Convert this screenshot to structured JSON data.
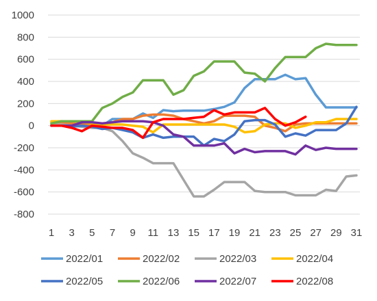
{
  "chart_data": {
    "type": "line",
    "ylim": [
      -800,
      1000
    ],
    "yticks": [
      -800,
      -600,
      -400,
      -200,
      0,
      200,
      400,
      600,
      800,
      1000
    ],
    "xticks": [
      1,
      3,
      5,
      7,
      9,
      11,
      13,
      15,
      17,
      19,
      21,
      23,
      25,
      27,
      29,
      31
    ],
    "grid": true,
    "legend_position": "bottom",
    "series": [
      {
        "name": "2022/01",
        "color": "#5B9BD5",
        "x": [
          1,
          2,
          3,
          4,
          5,
          6,
          7,
          8,
          9,
          10,
          11,
          12,
          13,
          14,
          15,
          16,
          17,
          18,
          19,
          20,
          21,
          22,
          23,
          24,
          25,
          26,
          27,
          28,
          29,
          30,
          31
        ],
        "values": [
          10,
          20,
          20,
          15,
          10,
          0,
          60,
          60,
          60,
          110,
          70,
          140,
          130,
          135,
          135,
          135,
          150,
          170,
          210,
          340,
          420,
          420,
          420,
          460,
          420,
          430,
          280,
          165,
          165,
          165,
          165
        ]
      },
      {
        "name": "2022/02",
        "color": "#ED7D31",
        "x": [
          1,
          2,
          3,
          4,
          5,
          6,
          7,
          8,
          9,
          10,
          11,
          12,
          13,
          14,
          15,
          16,
          17,
          18,
          19,
          20,
          21,
          22,
          23,
          24,
          25,
          26,
          27,
          28,
          29,
          30,
          31
        ],
        "values": [
          30,
          30,
          20,
          10,
          0,
          0,
          30,
          60,
          60,
          90,
          100,
          100,
          90,
          60,
          40,
          20,
          40,
          90,
          90,
          90,
          80,
          0,
          -20,
          -50,
          10,
          20,
          20,
          20,
          20,
          20,
          20
        ]
      },
      {
        "name": "2022/03",
        "color": "#A5A5A5",
        "x": [
          1,
          2,
          3,
          4,
          5,
          6,
          7,
          8,
          9,
          10,
          11,
          12,
          13,
          14,
          15,
          16,
          17,
          18,
          19,
          20,
          21,
          22,
          23,
          24,
          25,
          26,
          27,
          28,
          29,
          30,
          31
        ],
        "values": [
          10,
          10,
          0,
          -10,
          -20,
          -20,
          -50,
          -140,
          -250,
          -290,
          -340,
          -340,
          -340,
          -490,
          -640,
          -640,
          -580,
          -510,
          -510,
          -510,
          -590,
          -600,
          -600,
          -600,
          -630,
          -630,
          -630,
          -580,
          -590,
          -460,
          -450
        ]
      },
      {
        "name": "2022/04",
        "color": "#FFC000",
        "x": [
          1,
          2,
          3,
          4,
          5,
          6,
          7,
          8,
          9,
          10,
          11,
          12,
          13,
          14,
          15,
          16,
          17,
          18,
          19,
          20,
          21,
          22,
          23,
          24,
          25,
          26,
          27,
          28,
          29,
          30,
          31
        ],
        "values": [
          40,
          40,
          40,
          30,
          20,
          10,
          10,
          10,
          0,
          -10,
          -60,
          10,
          10,
          10,
          10,
          10,
          10,
          10,
          -10,
          -60,
          -50,
          10,
          20,
          20,
          -20,
          0,
          30,
          30,
          60,
          60,
          60
        ]
      },
      {
        "name": "2022/05",
        "color": "#4472C4",
        "x": [
          1,
          2,
          3,
          4,
          5,
          6,
          7,
          8,
          9,
          10,
          11,
          12,
          13,
          14,
          15,
          16,
          17,
          18,
          19,
          20,
          21,
          22,
          23,
          24,
          25,
          26,
          27,
          28,
          29,
          30,
          31
        ],
        "values": [
          0,
          0,
          -10,
          0,
          -10,
          -30,
          -20,
          -40,
          -60,
          -110,
          -80,
          -110,
          -100,
          -100,
          -100,
          -180,
          -120,
          -140,
          -80,
          40,
          50,
          50,
          10,
          -100,
          -70,
          -90,
          -40,
          -40,
          -40,
          20,
          170
        ]
      },
      {
        "name": "2022/06",
        "color": "#70AD47",
        "x": [
          1,
          2,
          3,
          4,
          5,
          6,
          7,
          8,
          9,
          10,
          11,
          12,
          13,
          14,
          15,
          16,
          17,
          18,
          19,
          20,
          21,
          22,
          23,
          24,
          25,
          26,
          27,
          28,
          29,
          30,
          31
        ],
        "values": [
          20,
          40,
          40,
          40,
          40,
          160,
          200,
          260,
          300,
          410,
          410,
          410,
          280,
          320,
          450,
          490,
          580,
          580,
          580,
          480,
          470,
          400,
          520,
          620,
          620,
          620,
          700,
          740,
          730,
          730,
          730
        ]
      },
      {
        "name": "2022/07",
        "color": "#7030A0",
        "x": [
          1,
          2,
          3,
          4,
          5,
          6,
          7,
          8,
          9,
          10,
          11,
          12,
          13,
          14,
          15,
          16,
          17,
          18,
          19,
          20,
          21,
          22,
          23,
          24,
          25,
          26,
          27,
          28,
          29,
          30,
          31
        ],
        "values": [
          0,
          0,
          0,
          30,
          30,
          20,
          30,
          40,
          40,
          40,
          30,
          0,
          -80,
          -100,
          -180,
          -180,
          -180,
          -160,
          -250,
          -210,
          -240,
          -230,
          -230,
          -230,
          -260,
          -180,
          -220,
          -200,
          -210,
          -210,
          -210
        ]
      },
      {
        "name": "2022/08",
        "color": "#FF0000",
        "x": [
          1,
          2,
          3,
          4,
          5,
          6,
          7,
          8,
          9,
          10,
          11,
          12,
          13,
          14,
          15,
          16,
          17,
          18,
          19,
          20,
          21,
          22,
          23,
          24,
          25,
          26
        ],
        "values": [
          0,
          0,
          -20,
          -50,
          0,
          -10,
          -20,
          -20,
          -40,
          -110,
          30,
          60,
          60,
          60,
          70,
          80,
          140,
          100,
          120,
          120,
          120,
          160,
          60,
          0,
          30,
          80
        ]
      }
    ]
  }
}
